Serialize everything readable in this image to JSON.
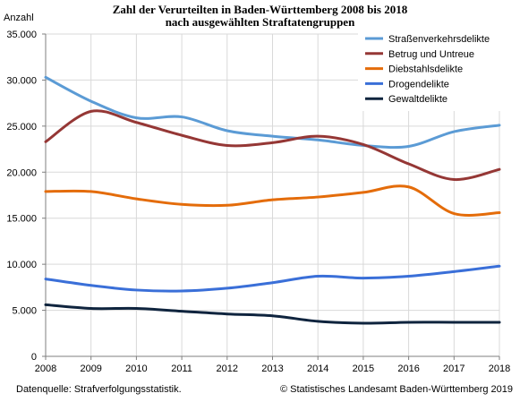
{
  "chart_data": {
    "type": "line",
    "title": "Zahl der Verurteilten in Baden-Württemberg 2008 bis 2018",
    "subtitle": "nach ausgewählten Straftatengruppen",
    "ylabel": "Anzahl",
    "xlabel": "",
    "x": [
      2008,
      2009,
      2010,
      2011,
      2012,
      2013,
      2014,
      2015,
      2016,
      2017,
      2018
    ],
    "ylim": [
      0,
      35000
    ],
    "yticks": [
      0,
      5000,
      10000,
      15000,
      20000,
      25000,
      30000,
      35000
    ],
    "ytick_labels": [
      "0",
      "5.000",
      "10.000",
      "15.000",
      "20.000",
      "25.000",
      "30.000",
      "35.000"
    ],
    "grid": true,
    "legend_position": "top-right",
    "series": [
      {
        "name": "Straßenverkehrsdelikte",
        "color": "#5b9bd5",
        "values": [
          30300,
          27700,
          25900,
          26000,
          24500,
          23900,
          23500,
          22900,
          22800,
          24400,
          25100
        ]
      },
      {
        "name": "Betrug und Untreue",
        "color": "#953735",
        "values": [
          23300,
          26600,
          25400,
          24000,
          22900,
          23200,
          23900,
          23000,
          20900,
          19200,
          20300
        ]
      },
      {
        "name": "Diebstahlsdelikte",
        "color": "#e46c0a",
        "values": [
          17900,
          17900,
          17100,
          16500,
          16400,
          17000,
          17300,
          17800,
          18400,
          15500,
          15600
        ]
      },
      {
        "name": "Drogendelikte",
        "color": "#3a6fd8",
        "values": [
          8400,
          7700,
          7200,
          7100,
          7400,
          8000,
          8700,
          8500,
          8700,
          9200,
          9800
        ]
      },
      {
        "name": "Gewaltdelikte",
        "color": "#0f243e",
        "values": [
          5600,
          5200,
          5200,
          4900,
          4600,
          4400,
          3800,
          3600,
          3700,
          3700,
          3700
        ]
      }
    ]
  },
  "footer": {
    "source": "Datenquelle: Strafverfolgungsstatistik.",
    "copyright": "© Statistisches Landesamt Baden-Württemberg 2019"
  }
}
